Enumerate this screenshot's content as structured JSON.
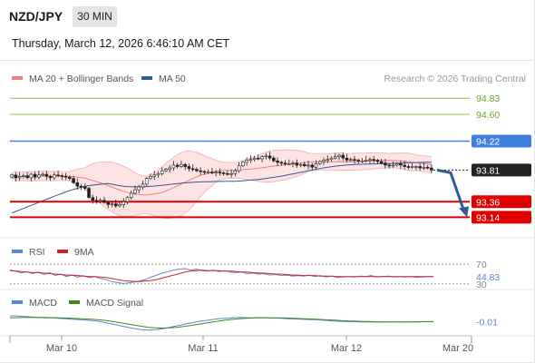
{
  "header": {
    "symbol": "NZD/JPY",
    "timeframe": "30 MIN",
    "datetime": "Thursday, March 12, 2026 6:46:10 AM CET"
  },
  "colors": {
    "bollinger": "#f08080",
    "bollinger_fill": "#fde3e3",
    "ma50": "#2e5c97",
    "resistance": "#8cc63f",
    "pivot": "#3f7fe0",
    "support": "#e00000",
    "candle_up": "#ffffff",
    "candle_down": "#222222",
    "rsi": "#5b86d6",
    "rsi_ma": "#d42020",
    "macd": "#5b86d6",
    "macd_signal": "#3a8a1a",
    "arrow": "#2e5c97"
  },
  "chart_data": [
    {
      "type": "candlestick",
      "name": "price",
      "legend": [
        {
          "label": "MA 20 + Bollinger Bands",
          "color": "#f08080"
        },
        {
          "label": "MA 50",
          "color": "#2e5c97"
        }
      ],
      "watermark": "Research © 2026 Trading Central",
      "ylim": [
        92.9,
        95.0
      ],
      "levels": [
        {
          "value": 94.83,
          "label": "94.83",
          "kind": "resistance"
        },
        {
          "value": 94.6,
          "label": "94.60",
          "kind": "resistance"
        },
        {
          "value": 94.22,
          "label": "94.22",
          "kind": "pivot"
        },
        {
          "value": 93.81,
          "label": "93.81",
          "kind": "last"
        },
        {
          "value": 93.36,
          "label": "93.36",
          "kind": "support"
        },
        {
          "value": 93.14,
          "label": "93.14",
          "kind": "support"
        }
      ],
      "forecast": {
        "from": 93.81,
        "to": 93.14
      },
      "close": [
        93.74,
        93.7,
        93.72,
        93.73,
        93.7,
        93.75,
        93.71,
        93.74,
        93.75,
        93.72,
        93.7,
        93.74,
        93.73,
        93.72,
        93.71,
        93.69,
        93.63,
        93.58,
        93.57,
        93.55,
        93.42,
        93.38,
        93.37,
        93.38,
        93.35,
        93.32,
        93.33,
        93.3,
        93.32,
        93.36,
        93.42,
        93.48,
        93.53,
        93.57,
        93.61,
        93.69,
        93.72,
        93.74,
        93.76,
        93.8,
        93.82,
        93.84,
        93.88,
        93.86,
        93.89,
        93.86,
        93.83,
        93.82,
        93.8,
        93.79,
        93.78,
        93.78,
        93.77,
        93.78,
        93.77,
        93.76,
        93.75,
        93.76,
        93.8,
        93.87,
        93.92,
        93.95,
        93.96,
        93.98,
        93.97,
        94.0,
        94.01,
        93.98,
        93.94,
        93.92,
        93.91,
        93.9,
        93.9,
        93.91,
        93.88,
        93.89,
        93.87,
        93.88,
        93.85,
        93.9,
        93.93,
        93.95,
        93.96,
        93.98,
        94.0,
        94.02,
        93.98,
        93.95,
        93.96,
        93.95,
        93.94,
        93.94,
        93.95,
        93.96,
        93.95,
        93.93,
        93.91,
        93.88,
        93.87,
        93.88,
        93.9,
        93.88,
        93.86,
        93.85,
        93.86,
        93.86,
        93.84,
        93.85,
        93.84,
        93.81
      ]
    },
    {
      "type": "line",
      "name": "rsi",
      "legend": [
        {
          "label": "RSI",
          "color": "#5b86d6"
        },
        {
          "label": "9MA",
          "color": "#d42020"
        }
      ],
      "ylim": [
        28,
        72
      ],
      "ticks": [
        "70",
        "30"
      ],
      "last_value": "44.83",
      "series": [
        {
          "name": "RSI",
          "values": [
            58,
            56,
            52,
            55,
            51,
            54,
            49,
            53,
            47,
            50,
            45,
            48,
            44,
            47,
            43,
            45,
            41,
            39,
            35,
            33,
            31,
            32,
            34,
            36,
            39,
            44,
            48,
            52,
            55,
            58,
            60,
            61,
            58,
            60,
            57,
            56,
            58,
            55,
            57,
            54,
            53,
            54,
            51,
            52,
            50,
            51,
            48,
            49,
            47,
            48,
            46,
            47,
            46,
            48,
            45,
            47,
            44,
            46,
            43,
            44,
            45,
            44,
            46,
            45,
            47,
            44,
            45,
            46,
            44,
            45,
            44,
            45,
            43,
            44,
            45,
            44.83
          ]
        },
        {
          "name": "9MA",
          "values": [
            57,
            56,
            55,
            54,
            53,
            53,
            52,
            51,
            50,
            49,
            48,
            48,
            47,
            46,
            45,
            45,
            44,
            43,
            41,
            39,
            37,
            36,
            35,
            35,
            36,
            37,
            39,
            42,
            45,
            48,
            51,
            54,
            56,
            57,
            58,
            57,
            57,
            57,
            56,
            56,
            55,
            54,
            54,
            53,
            52,
            52,
            51,
            50,
            50,
            49,
            48,
            48,
            47,
            47,
            47,
            46,
            46,
            46,
            45,
            45,
            45,
            45,
            45,
            45,
            45,
            45,
            45,
            45,
            45,
            45,
            45,
            45,
            45,
            45,
            44.9,
            44.9
          ]
        }
      ]
    },
    {
      "type": "line",
      "name": "macd",
      "legend": [
        {
          "label": "MACD",
          "color": "#5b86d6"
        },
        {
          "label": "MACD Signal",
          "color": "#3a8a1a"
        }
      ],
      "ylim": [
        -0.14,
        0.08
      ],
      "last_value": "-0.01",
      "series": [
        {
          "name": "MACD",
          "values": [
            0.05,
            0.05,
            0.045,
            0.04,
            0.035,
            0.03,
            0.03,
            0.025,
            0.02,
            0.015,
            0.01,
            0.005,
            0.0,
            -0.01,
            -0.025,
            -0.04,
            -0.055,
            -0.07,
            -0.085,
            -0.095,
            -0.1,
            -0.095,
            -0.085,
            -0.07,
            -0.055,
            -0.04,
            -0.025,
            -0.01,
            0.0,
            0.01,
            0.02,
            0.025,
            0.03,
            0.035,
            0.032,
            0.03,
            0.032,
            0.03,
            0.028,
            0.025,
            0.02,
            0.018,
            0.015,
            0.012,
            0.01,
            0.005,
            0.0,
            -0.005,
            -0.008,
            -0.01,
            -0.012,
            -0.013,
            -0.014,
            -0.015,
            -0.015,
            -0.015,
            -0.014,
            -0.013,
            -0.012,
            -0.011,
            -0.01,
            -0.01
          ]
        },
        {
          "name": "MACD Signal",
          "values": [
            0.03,
            0.032,
            0.034,
            0.035,
            0.035,
            0.034,
            0.032,
            0.03,
            0.028,
            0.025,
            0.022,
            0.018,
            0.014,
            0.008,
            0.0,
            -0.01,
            -0.022,
            -0.035,
            -0.048,
            -0.06,
            -0.07,
            -0.076,
            -0.078,
            -0.076,
            -0.07,
            -0.062,
            -0.052,
            -0.04,
            -0.028,
            -0.016,
            -0.005,
            0.005,
            0.013,
            0.02,
            0.025,
            0.028,
            0.03,
            0.03,
            0.03,
            0.029,
            0.027,
            0.025,
            0.022,
            0.019,
            0.016,
            0.012,
            0.008,
            0.004,
            0.0,
            -0.003,
            -0.006,
            -0.008,
            -0.01,
            -0.012,
            -0.013,
            -0.014,
            -0.014,
            -0.014,
            -0.013,
            -0.012,
            -0.011,
            -0.011
          ]
        }
      ]
    }
  ],
  "x_axis": {
    "labels": [
      "Mar 10",
      "Mar 11",
      "Mar 12",
      "Mar 20"
    ],
    "positions": [
      0.123,
      0.457,
      0.795,
      0.98
    ]
  }
}
